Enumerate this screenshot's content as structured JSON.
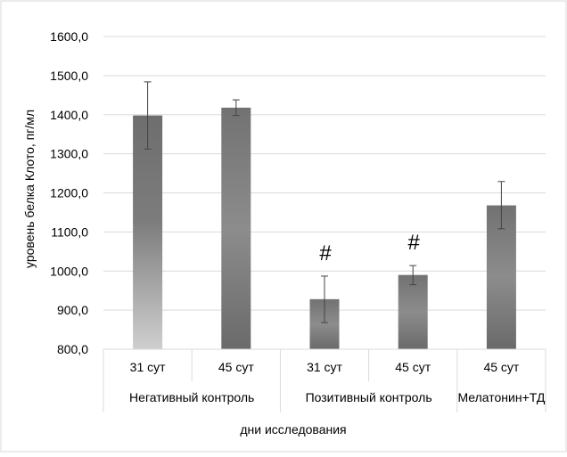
{
  "chart_data": {
    "type": "bar",
    "title": "",
    "ylabel": "уровень белка Клото, пг/мл",
    "xlabel": "дни исследования",
    "ylim": [
      800,
      1600
    ],
    "yticks": [
      800,
      900,
      1000,
      1100,
      1200,
      1300,
      1400,
      1500,
      1600
    ],
    "ytick_labels": [
      "800,0",
      "900,0",
      "1000,0",
      "1100,0",
      "1200,0",
      "1300,0",
      "1400,0",
      "1500,0",
      "1600,0"
    ],
    "grid": true,
    "legend": "none",
    "groups": [
      {
        "name": "Негативный контроль",
        "span": 2
      },
      {
        "name": "Позитивный контроль",
        "span": 2
      },
      {
        "name": "Мелатонин+ТД",
        "span": 1
      }
    ],
    "categories": [
      "31 сут",
      "45 сут",
      "31 сут",
      "45 сут",
      "45 сут"
    ],
    "values": [
      1398,
      1418,
      928,
      990,
      1168
    ],
    "error_low": [
      1312,
      1398,
      868,
      965,
      1108
    ],
    "error_high": [
      1484,
      1438,
      987,
      1014,
      1229
    ],
    "annotations": [
      "",
      "",
      "#",
      "#",
      ""
    ]
  }
}
